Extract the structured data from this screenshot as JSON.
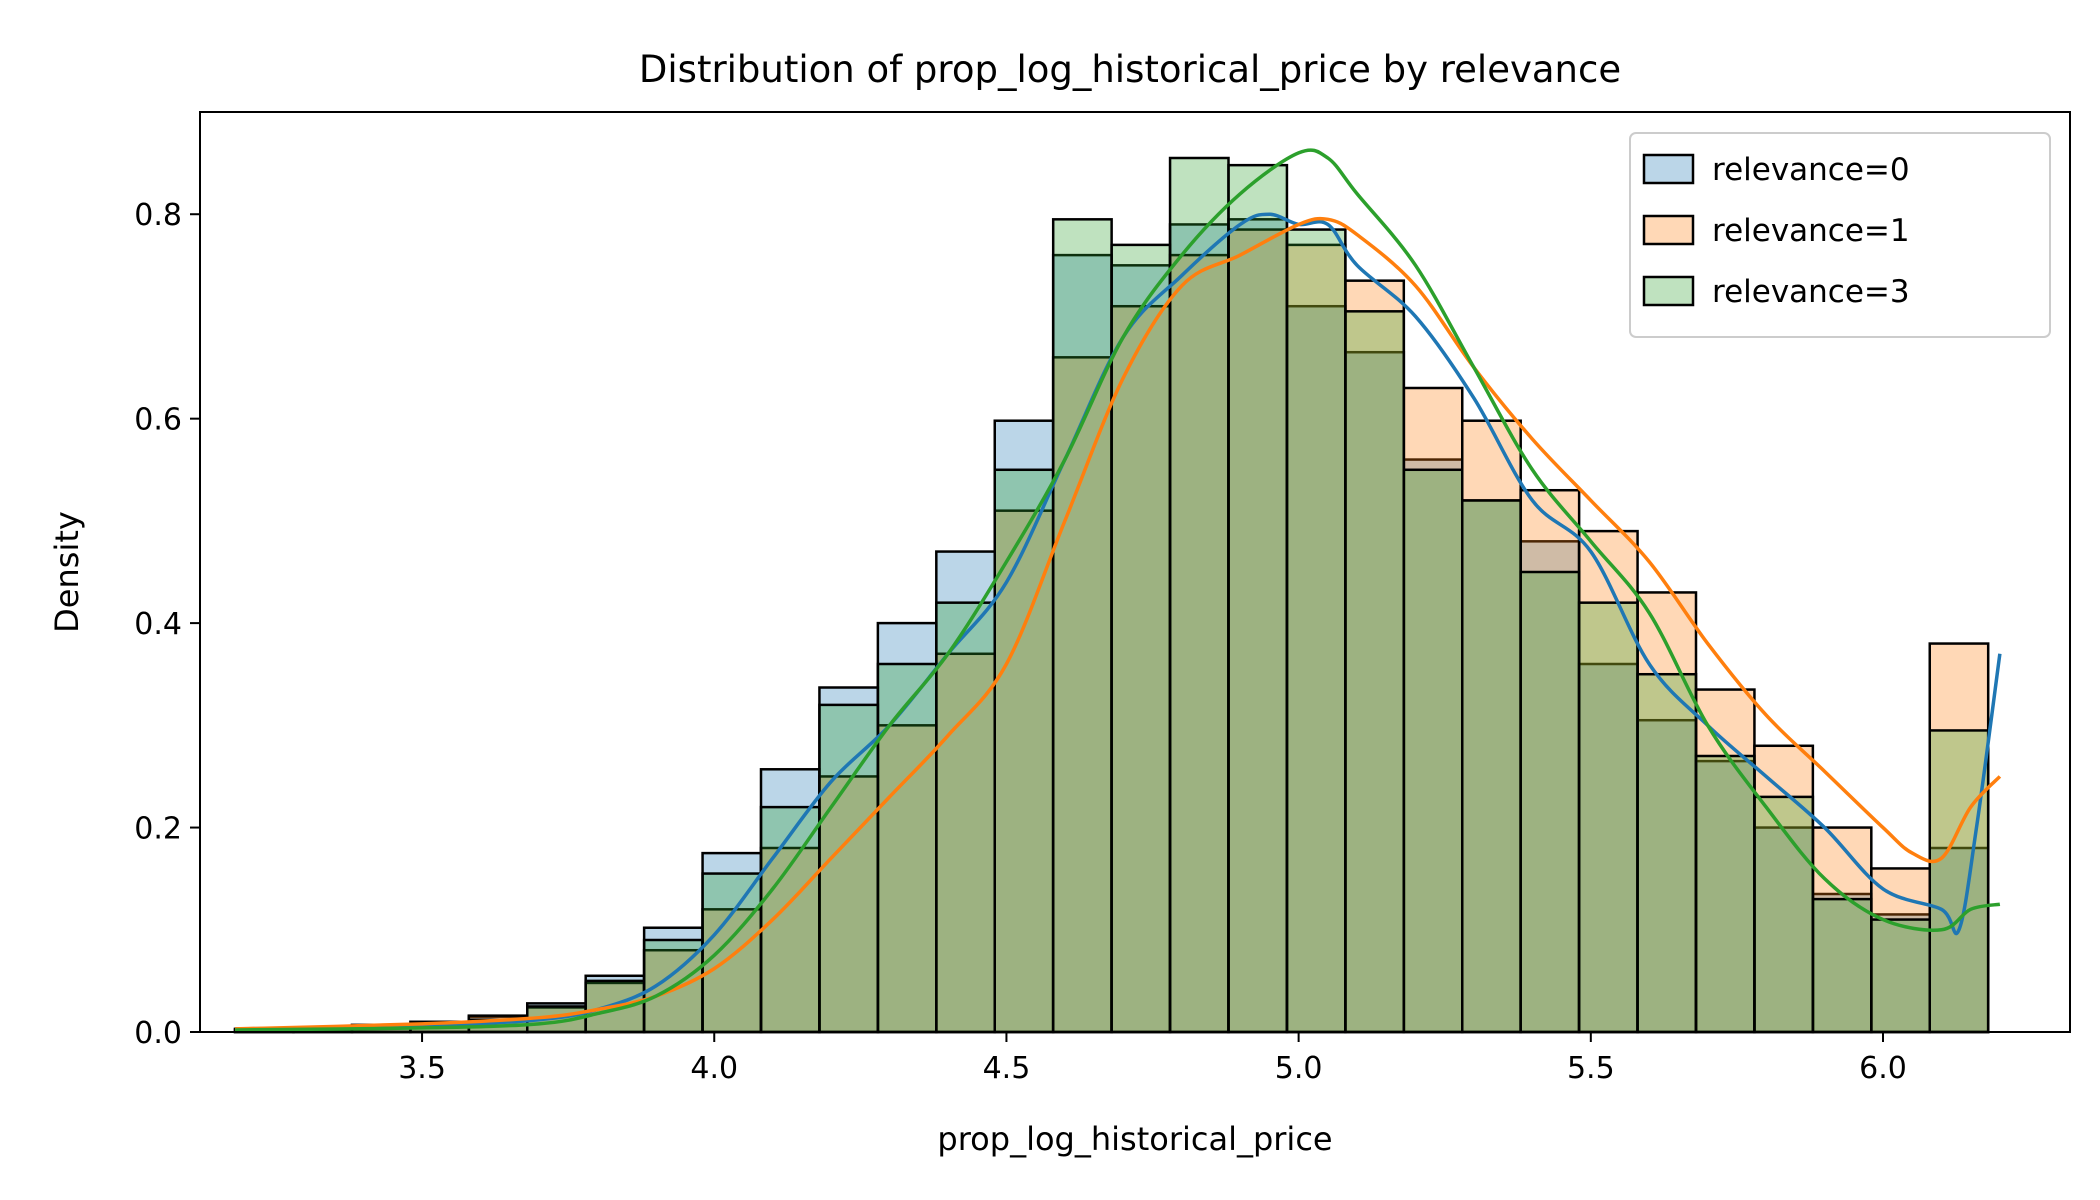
{
  "chart_data": {
    "type": "histogram",
    "title": "Distribution of prop_log_historical_price by relevance",
    "xlabel": "prop_log_historical_price",
    "ylabel": "Density",
    "xlim": [
      3.12,
      6.32
    ],
    "ylim": [
      0,
      0.9
    ],
    "x_ticks": [
      3.5,
      4.0,
      4.5,
      5.0,
      5.5,
      6.0
    ],
    "x_tick_labels": [
      "3.5",
      "4.0",
      "4.5",
      "5.0",
      "5.5",
      "6.0"
    ],
    "y_ticks": [
      0.0,
      0.2,
      0.4,
      0.6,
      0.8
    ],
    "y_tick_labels": [
      "0.0",
      "0.2",
      "0.4",
      "0.6",
      "0.8"
    ],
    "legend_position": "top-right",
    "grid": false,
    "bin_edges": [
      3.18,
      3.28,
      3.38,
      3.48,
      3.58,
      3.68,
      3.78,
      3.88,
      3.98,
      4.08,
      4.18,
      4.28,
      4.38,
      4.48,
      4.58,
      4.68,
      4.78,
      4.88,
      4.98,
      5.08,
      5.18,
      5.28,
      5.38,
      5.48,
      5.58,
      5.68,
      5.78,
      5.88,
      5.98,
      6.08,
      6.18
    ],
    "series": [
      {
        "name": "relevance=0",
        "color": "#1f77b4",
        "bar_values": [
          0.003,
          0.004,
          0.006,
          0.008,
          0.015,
          0.028,
          0.055,
          0.102,
          0.175,
          0.257,
          0.337,
          0.4,
          0.47,
          0.598,
          0.76,
          0.75,
          0.79,
          0.795,
          0.71,
          0.665,
          0.56,
          0.52,
          0.48,
          0.36,
          0.305,
          0.265,
          0.2,
          0.135,
          0.115,
          0.18
        ],
        "kde_x": [
          3.18,
          3.5,
          3.7,
          3.8,
          3.9,
          4.0,
          4.1,
          4.2,
          4.3,
          4.4,
          4.5,
          4.6,
          4.7,
          4.8,
          4.9,
          4.95,
          5.0,
          5.05,
          5.1,
          5.2,
          5.3,
          5.4,
          5.5,
          5.6,
          5.7,
          5.8,
          5.9,
          6.0,
          6.1,
          6.13,
          6.16,
          6.2
        ],
        "kde_y": [
          0.003,
          0.006,
          0.012,
          0.022,
          0.045,
          0.095,
          0.17,
          0.245,
          0.3,
          0.37,
          0.44,
          0.56,
          0.68,
          0.74,
          0.79,
          0.8,
          0.79,
          0.79,
          0.75,
          0.7,
          0.62,
          0.52,
          0.47,
          0.36,
          0.3,
          0.25,
          0.2,
          0.14,
          0.12,
          0.1,
          0.2,
          0.37
        ]
      },
      {
        "name": "relevance=1",
        "color": "#ff7f0e",
        "bar_values": [
          0.003,
          0.004,
          0.007,
          0.01,
          0.016,
          0.024,
          0.048,
          0.08,
          0.12,
          0.18,
          0.25,
          0.3,
          0.37,
          0.51,
          0.66,
          0.71,
          0.76,
          0.785,
          0.77,
          0.735,
          0.63,
          0.598,
          0.53,
          0.49,
          0.43,
          0.335,
          0.28,
          0.2,
          0.16,
          0.38
        ],
        "kde_x": [
          3.18,
          3.5,
          3.7,
          3.8,
          3.9,
          4.0,
          4.1,
          4.2,
          4.3,
          4.4,
          4.5,
          4.6,
          4.7,
          4.8,
          4.9,
          5.0,
          5.05,
          5.1,
          5.2,
          5.3,
          5.4,
          5.5,
          5.6,
          5.7,
          5.8,
          5.9,
          6.0,
          6.05,
          6.1,
          6.15,
          6.2
        ],
        "kde_y": [
          0.003,
          0.008,
          0.014,
          0.022,
          0.035,
          0.062,
          0.11,
          0.17,
          0.23,
          0.29,
          0.36,
          0.5,
          0.64,
          0.73,
          0.76,
          0.79,
          0.795,
          0.78,
          0.73,
          0.65,
          0.58,
          0.52,
          0.46,
          0.38,
          0.31,
          0.255,
          0.2,
          0.175,
          0.17,
          0.22,
          0.25
        ]
      },
      {
        "name": "relevance=3",
        "color": "#2ca02c",
        "bar_values": [
          0.002,
          0.003,
          0.005,
          0.007,
          0.012,
          0.025,
          0.05,
          0.09,
          0.155,
          0.22,
          0.32,
          0.36,
          0.42,
          0.55,
          0.795,
          0.77,
          0.855,
          0.848,
          0.785,
          0.705,
          0.55,
          0.52,
          0.45,
          0.42,
          0.35,
          0.27,
          0.23,
          0.13,
          0.11,
          0.295
        ],
        "kde_x": [
          3.18,
          3.5,
          3.7,
          3.8,
          3.9,
          4.0,
          4.1,
          4.2,
          4.3,
          4.4,
          4.5,
          4.6,
          4.7,
          4.8,
          4.9,
          5.0,
          5.05,
          5.1,
          5.2,
          5.3,
          5.4,
          5.5,
          5.6,
          5.7,
          5.8,
          5.9,
          6.0,
          6.1,
          6.15,
          6.2
        ],
        "kde_y": [
          0.002,
          0.004,
          0.008,
          0.018,
          0.035,
          0.075,
          0.14,
          0.22,
          0.3,
          0.37,
          0.46,
          0.56,
          0.68,
          0.76,
          0.82,
          0.86,
          0.855,
          0.82,
          0.75,
          0.65,
          0.55,
          0.48,
          0.41,
          0.3,
          0.22,
          0.15,
          0.11,
          0.1,
          0.12,
          0.125
        ]
      }
    ]
  }
}
